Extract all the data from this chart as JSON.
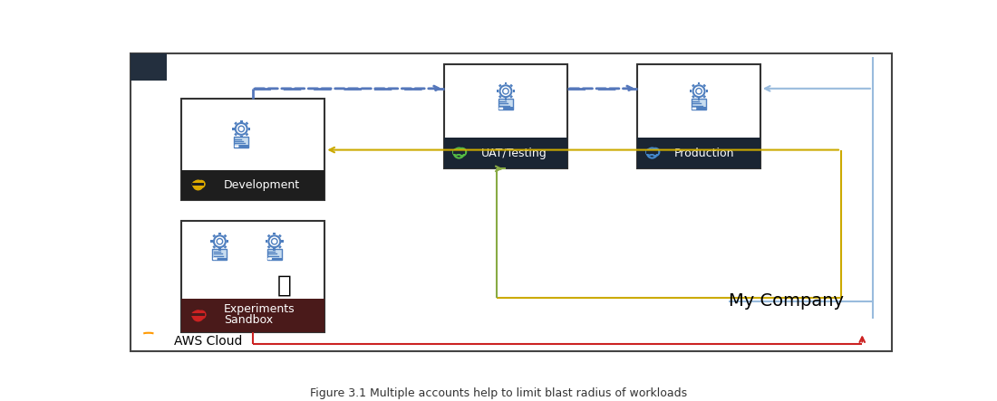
{
  "title": "Figure 3.1 Multiple accounts help to limit blast radius of workloads",
  "bg_color": "#ffffff",
  "border_color": "#444444",
  "aws_bar_color": "#232f3e",
  "red_line_color": "#cc2222",
  "yellow_line_color": "#ccaa00",
  "green_line_color": "#88aa44",
  "blue_dashed_color": "#5577bb",
  "light_blue_color": "#99bbdd",
  "sandbox_header_color": "#4a1a1a",
  "dev_header_color": "#1e1e1e",
  "uat_header_color": "#1a2533",
  "prod_header_color": "#1a2533",
  "sandbox_cloud_color": "#cc2222",
  "dev_cloud_color": "#ddaa00",
  "uat_cloud_color": "#55bb44",
  "prod_cloud_color": "#4488cc",
  "icon_blue": "#4f7fbf",
  "icon_light": "#c8ddf0",
  "my_company_label": "My Company",
  "aws_cloud_label": "AWS Cloud",
  "sandbox_label": "Sandbox\nExperiments",
  "dev_label": "Development",
  "uat_label": "UAT/Testing",
  "prod_label": "Production"
}
